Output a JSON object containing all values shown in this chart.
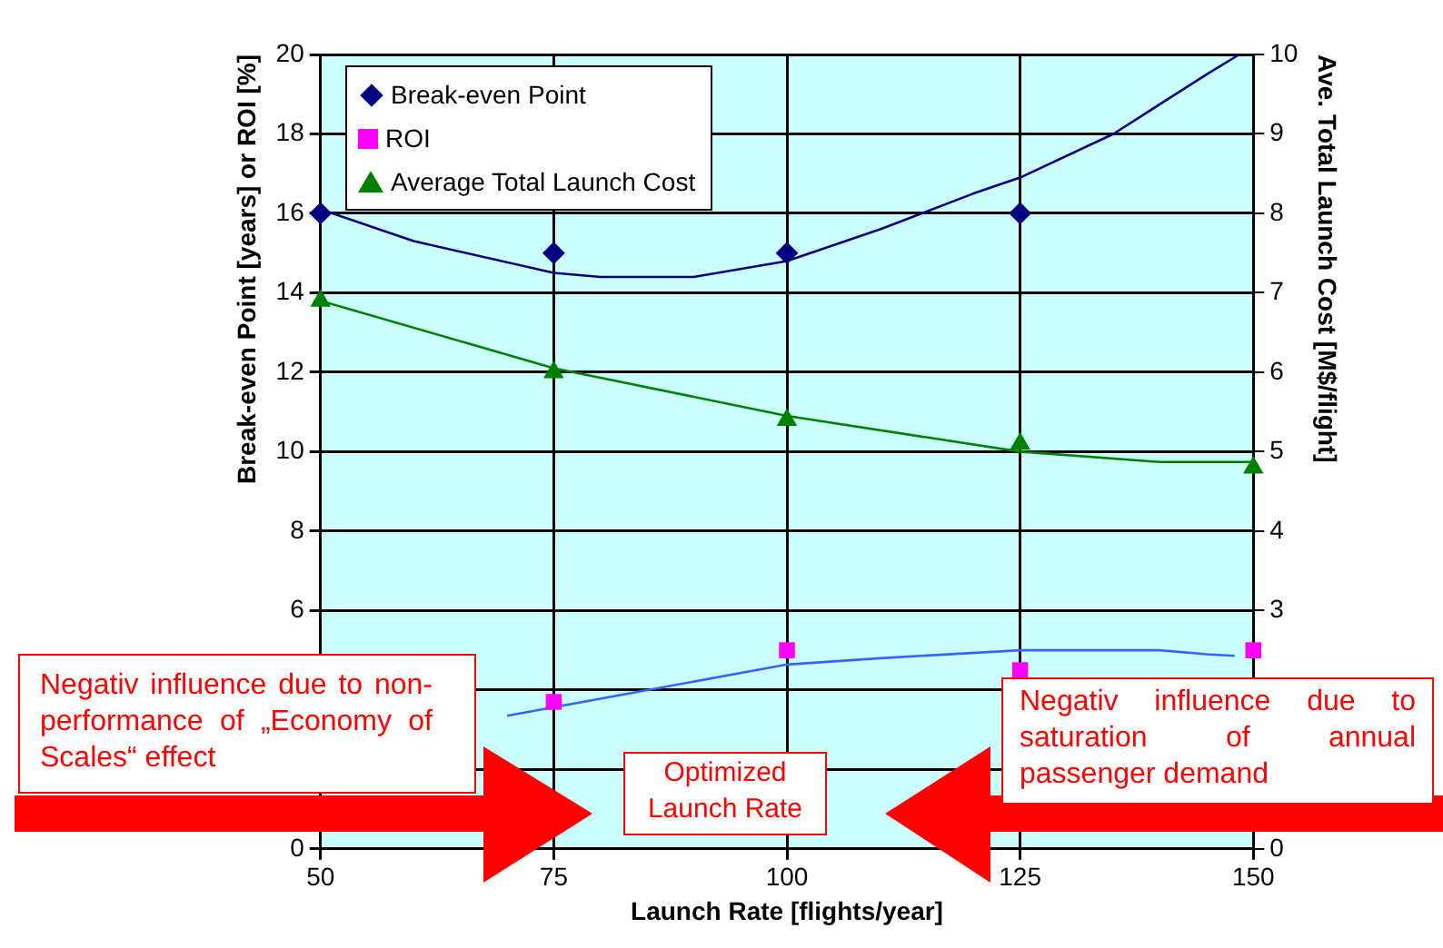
{
  "chart_data": {
    "type": "scatter",
    "xlabel": "Launch Rate [flights/year]",
    "ylabel": "Break-even Point [years] or ROI [%]",
    "y2label": "Ave. Total Launch Cost [M$/flight]",
    "x": [
      50,
      75,
      100,
      125,
      150
    ],
    "series": [
      {
        "name": "Break-even Point",
        "marker": "diamond",
        "color": "#000080",
        "values": [
          16,
          15,
          15,
          16,
          null
        ]
      },
      {
        "name": "ROI",
        "marker": "square",
        "color": "#ff00ff",
        "values": [
          null,
          3.7,
          5.0,
          4.5,
          5.0
        ]
      },
      {
        "name": "Average Total Launch Cost",
        "marker": "triangle",
        "color": "#008000",
        "axis": "y2",
        "values": [
          6.9,
          6.0,
          5.4,
          5.1,
          4.8
        ]
      },
      {
        "type": "line",
        "marker": "none",
        "color": "#000080",
        "x": [
          50,
          60,
          75,
          80,
          90,
          100,
          110,
          120,
          125,
          135,
          145,
          148.5
        ],
        "values": [
          16.1,
          15.3,
          14.5,
          14.4,
          14.4,
          14.8,
          15.6,
          16.5,
          16.9,
          18.0,
          19.5,
          20.0
        ]
      },
      {
        "type": "line",
        "marker": "none",
        "color": "#3366ff",
        "x": [
          70,
          100,
          110,
          125,
          140,
          145,
          148
        ],
        "values": [
          3.35,
          4.64,
          4.8,
          5.0,
          5.0,
          4.9,
          4.86
        ]
      },
      {
        "type": "line",
        "marker": "none",
        "color": "#008000",
        "axis": "y2",
        "x": [
          50,
          75,
          100,
          125,
          140,
          150
        ],
        "values": [
          6.9,
          6.05,
          5.45,
          5.0,
          4.87,
          4.87
        ]
      }
    ],
    "xlim": [
      50,
      150
    ],
    "xticks": [
      50,
      75,
      100,
      125,
      150
    ],
    "ylim": [
      0,
      20
    ],
    "yticks": [
      0,
      {
        "value": 2,
        "label": null
      },
      {
        "value": 4,
        "label": null
      },
      6,
      8,
      10,
      12,
      14,
      16,
      18,
      20
    ],
    "y2lim": [
      0,
      10
    ],
    "y2ticks": [
      0,
      3,
      4,
      5,
      6,
      7,
      8,
      9,
      10
    ],
    "grid": true,
    "legend": "top left",
    "annotations": [
      "Negativ influence due to non-performance of „Economy of Scales“ effect",
      "Optimized Launch Rate",
      "Negativ influence due to saturation of annual passenger demand"
    ]
  }
}
